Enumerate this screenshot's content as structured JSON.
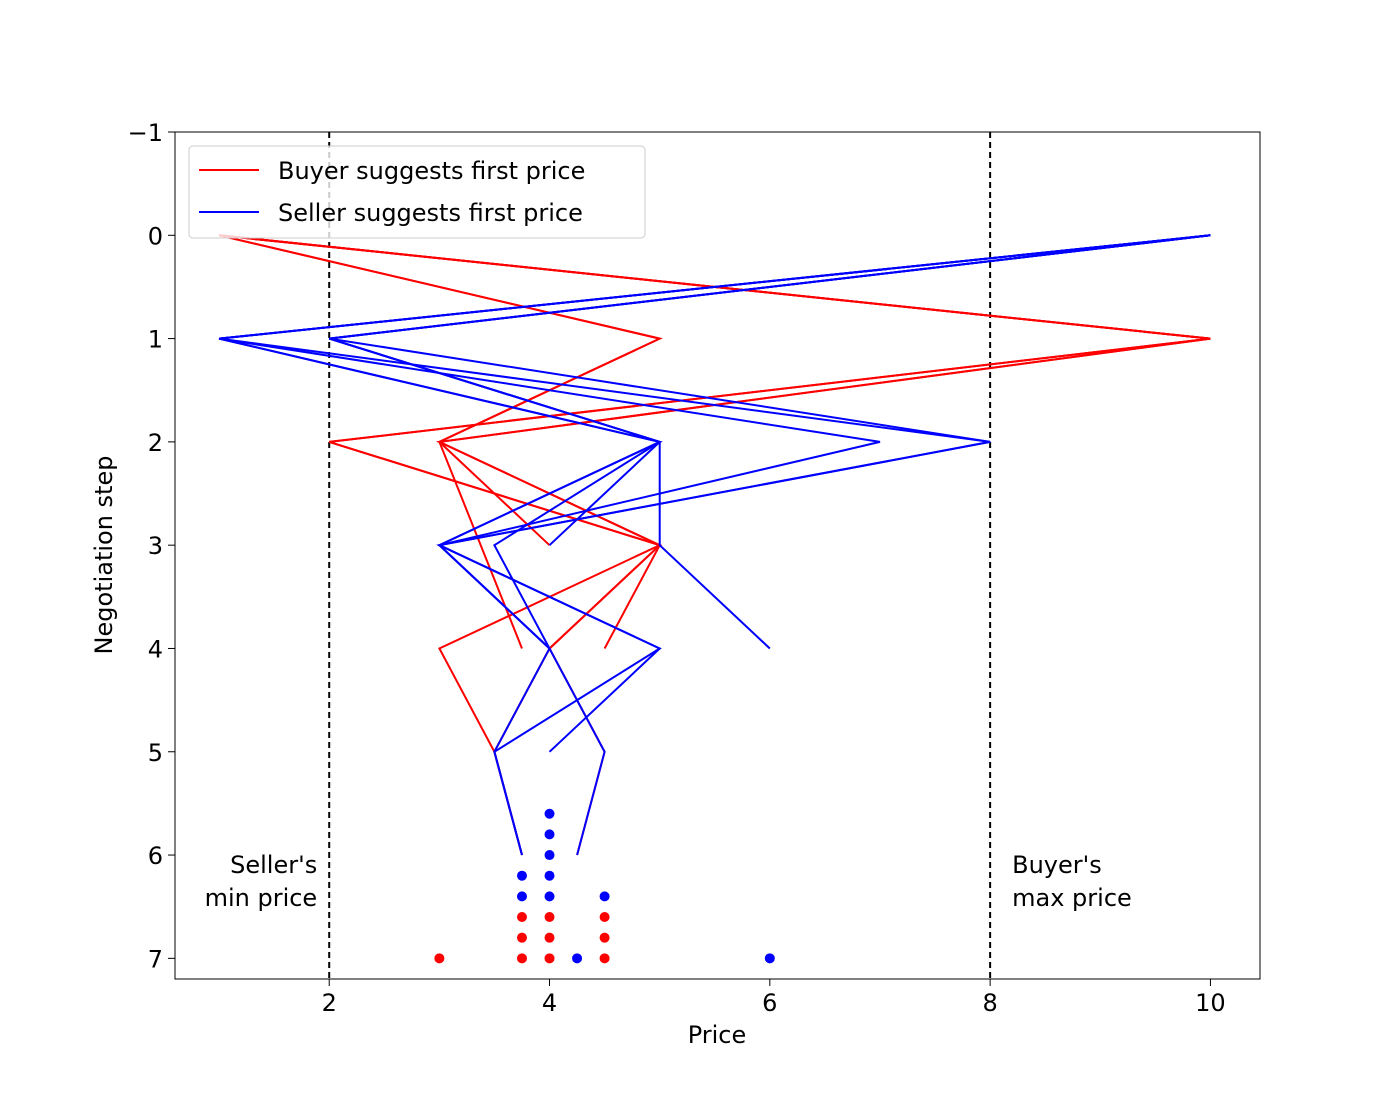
{
  "chart_data": {
    "type": "line",
    "title": "",
    "xlabel": "Price",
    "ylabel": "Negotiation step",
    "xlim": [
      0.6,
      10.45
    ],
    "ylim": [
      7.2,
      -1
    ],
    "y_inverted": true,
    "xticks": [
      2,
      4,
      6,
      8,
      10
    ],
    "yticks": [
      -1,
      0,
      1,
      2,
      3,
      4,
      5,
      6,
      7
    ],
    "xtick_labels": [
      "2",
      "4",
      "6",
      "8",
      "10"
    ],
    "ytick_labels": [
      "−1",
      "0",
      "1",
      "2",
      "3",
      "4",
      "5",
      "6",
      "7"
    ],
    "grid": false,
    "legend": {
      "placement": "top-left",
      "entries": [
        {
          "name": "Buyer suggests first price",
          "color": "#ff0000"
        },
        {
          "name": "Seller suggests first price",
          "color": "#0000ff"
        }
      ]
    },
    "reference_lines": [
      {
        "x": 2,
        "style": "dashed",
        "color": "#000000",
        "label_lines": [
          "Seller's",
          "min price"
        ],
        "label_side": "left"
      },
      {
        "x": 8,
        "style": "dashed",
        "color": "#000000",
        "label_lines": [
          "Buyer's",
          "max price"
        ],
        "label_side": "right"
      }
    ],
    "series": [
      {
        "name": "Buyer suggests first price",
        "color": "#ff0000",
        "trajectories": [
          [
            [
              1,
              0
            ],
            [
              10,
              1
            ],
            [
              2,
              2
            ],
            [
              5,
              3
            ],
            [
              3,
              4
            ],
            [
              3.5,
              5
            ],
            [
              3.75,
              6
            ]
          ],
          [
            [
              1,
              0
            ],
            [
              10,
              1
            ],
            [
              2,
              2
            ],
            [
              5,
              3
            ],
            [
              4,
              4
            ],
            [
              3.5,
              5
            ],
            [
              3.75,
              6
            ]
          ],
          [
            [
              1,
              0
            ],
            [
              10,
              1
            ],
            [
              3,
              2
            ],
            [
              5,
              3
            ],
            [
              4.5,
              4
            ]
          ],
          [
            [
              1,
              0
            ],
            [
              10,
              1
            ],
            [
              3,
              2
            ],
            [
              4,
              3
            ]
          ],
          [
            [
              1,
              0
            ],
            [
              5,
              1
            ],
            [
              3,
              2
            ],
            [
              3.75,
              4
            ]
          ],
          [
            [
              1,
              0
            ],
            [
              5,
              1
            ],
            [
              3,
              2
            ],
            [
              5,
              3
            ],
            [
              4,
              4
            ],
            [
              4.5,
              5
            ],
            [
              4.25,
              6
            ]
          ]
        ],
        "endpoints": [
          [
            3,
            7
          ],
          [
            3.75,
            6.6
          ],
          [
            3.75,
            6.8
          ],
          [
            3.75,
            7
          ],
          [
            4,
            6.6
          ],
          [
            4,
            6.8
          ],
          [
            4,
            7
          ],
          [
            4.5,
            6.6
          ],
          [
            4.5,
            6.8
          ],
          [
            4.5,
            7
          ]
        ]
      },
      {
        "name": "Seller suggests first price",
        "color": "#0000ff",
        "trajectories": [
          [
            [
              10,
              0
            ],
            [
              1,
              1
            ],
            [
              5,
              2
            ],
            [
              3,
              3
            ],
            [
              4,
              4
            ],
            [
              3.5,
              5
            ],
            [
              3.75,
              6
            ]
          ],
          [
            [
              10,
              0
            ],
            [
              1,
              1
            ],
            [
              7,
              2
            ],
            [
              3,
              3
            ],
            [
              4,
              4
            ],
            [
              4.5,
              5
            ],
            [
              4.25,
              6
            ]
          ],
          [
            [
              10,
              0
            ],
            [
              1,
              1
            ],
            [
              8,
              2
            ],
            [
              3,
              3
            ],
            [
              5,
              4
            ],
            [
              4,
              5
            ]
          ],
          [
            [
              10,
              0
            ],
            [
              2,
              1
            ],
            [
              5,
              2
            ],
            [
              3.5,
              3
            ],
            [
              4,
              4
            ]
          ],
          [
            [
              10,
              0
            ],
            [
              2,
              1
            ],
            [
              5,
              2
            ],
            [
              4,
              3
            ]
          ],
          [
            [
              10,
              0
            ],
            [
              2,
              1
            ],
            [
              5,
              2
            ],
            [
              3,
              3
            ],
            [
              5,
              4
            ],
            [
              3.5,
              5
            ],
            [
              3.75,
              6
            ]
          ],
          [
            [
              10,
              0
            ],
            [
              2,
              1
            ],
            [
              8,
              2
            ],
            [
              3,
              3
            ],
            [
              4,
              4
            ]
          ],
          [
            [
              10,
              0
            ],
            [
              1,
              1
            ],
            [
              5,
              2
            ],
            [
              5,
              3
            ],
            [
              6,
              4
            ]
          ]
        ],
        "endpoints": [
          [
            4,
            5.6
          ],
          [
            4,
            5.8
          ],
          [
            4,
            6
          ],
          [
            4,
            6.2
          ],
          [
            4,
            6.4
          ],
          [
            3.75,
            6.2
          ],
          [
            3.75,
            6.4
          ],
          [
            4.5,
            6.4
          ],
          [
            4.25,
            7
          ],
          [
            6,
            7
          ]
        ]
      }
    ]
  }
}
